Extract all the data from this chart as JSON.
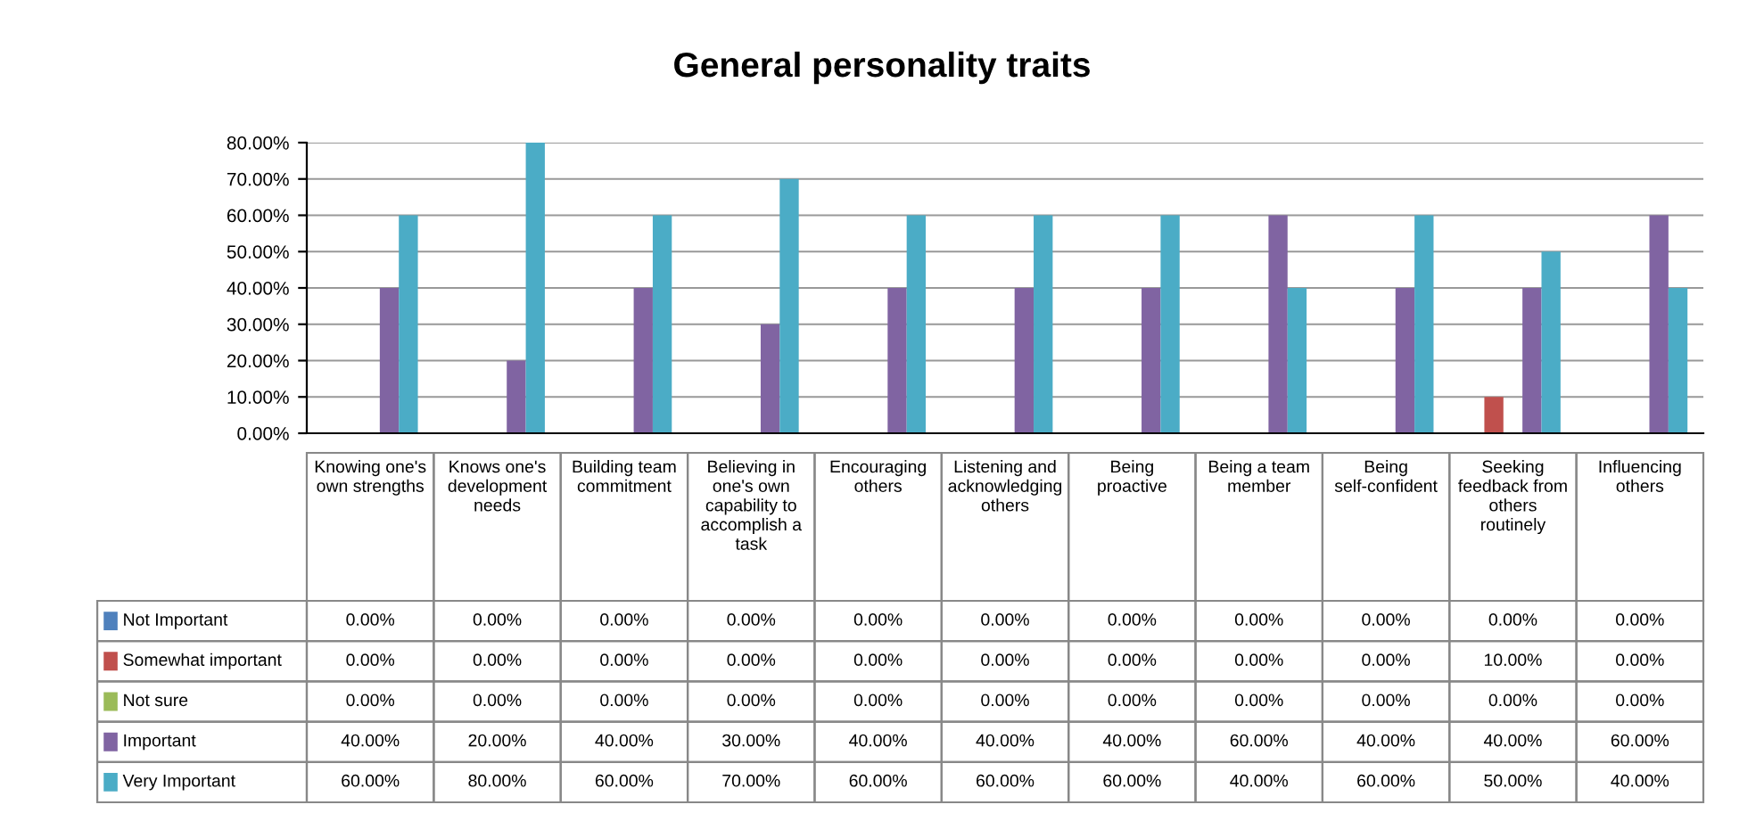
{
  "chart_data": {
    "type": "bar",
    "title": "General personality traits",
    "categories": [
      "Knowing one's own strengths",
      "Knows one's development needs",
      "Building team commitment",
      "Believing in one's own capability to accomplish a task",
      "Encouraging others",
      "Listening and acknowledging others",
      "Being proactive",
      "Being a team member",
      "Being self-confident",
      "Seeking feedback from others routinely",
      "Influencing others"
    ],
    "series": [
      {
        "name": "Not Important",
        "color": "#4f81bd",
        "values": [
          0,
          0,
          0,
          0,
          0,
          0,
          0,
          0,
          0,
          0,
          0
        ],
        "value_labels": [
          "0.00%",
          "0.00%",
          "0.00%",
          "0.00%",
          "0.00%",
          "0.00%",
          "0.00%",
          "0.00%",
          "0.00%",
          "0.00%",
          "0.00%"
        ]
      },
      {
        "name": "Somewhat important",
        "color": "#c0504d",
        "values": [
          0,
          0,
          0,
          0,
          0,
          0,
          0,
          0,
          0,
          10,
          0
        ],
        "value_labels": [
          "0.00%",
          "0.00%",
          "0.00%",
          "0.00%",
          "0.00%",
          "0.00%",
          "0.00%",
          "0.00%",
          "0.00%",
          "10.00%",
          "0.00%"
        ]
      },
      {
        "name": "Not sure",
        "color": "#9bbb59",
        "values": [
          0,
          0,
          0,
          0,
          0,
          0,
          0,
          0,
          0,
          0,
          0
        ],
        "value_labels": [
          "0.00%",
          "0.00%",
          "0.00%",
          "0.00%",
          "0.00%",
          "0.00%",
          "0.00%",
          "0.00%",
          "0.00%",
          "0.00%",
          "0.00%"
        ]
      },
      {
        "name": "Important",
        "color": "#8064a2",
        "values": [
          40,
          20,
          40,
          30,
          40,
          40,
          40,
          60,
          40,
          40,
          60
        ],
        "value_labels": [
          "40.00%",
          "20.00%",
          "40.00%",
          "30.00%",
          "40.00%",
          "40.00%",
          "40.00%",
          "60.00%",
          "40.00%",
          "40.00%",
          "60.00%"
        ]
      },
      {
        "name": "Very Important",
        "color": "#4bacc6",
        "values": [
          60,
          80,
          60,
          70,
          60,
          60,
          60,
          40,
          60,
          50,
          40
        ],
        "value_labels": [
          "60.00%",
          "80.00%",
          "60.00%",
          "70.00%",
          "60.00%",
          "60.00%",
          "60.00%",
          "40.00%",
          "60.00%",
          "50.00%",
          "40.00%"
        ]
      }
    ],
    "ylim": [
      0,
      80
    ],
    "yticks": [
      {
        "value": 0,
        "label": "0.00%"
      },
      {
        "value": 10,
        "label": "10.00%"
      },
      {
        "value": 20,
        "label": "20.00%"
      },
      {
        "value": 30,
        "label": "30.00%"
      },
      {
        "value": 40,
        "label": "40.00%"
      },
      {
        "value": 50,
        "label": "50.00%"
      },
      {
        "value": 60,
        "label": "60.00%"
      },
      {
        "value": 70,
        "label": "70.00%"
      },
      {
        "value": 80,
        "label": "80.00%"
      }
    ],
    "grid": "y",
    "legend": "bottom"
  }
}
